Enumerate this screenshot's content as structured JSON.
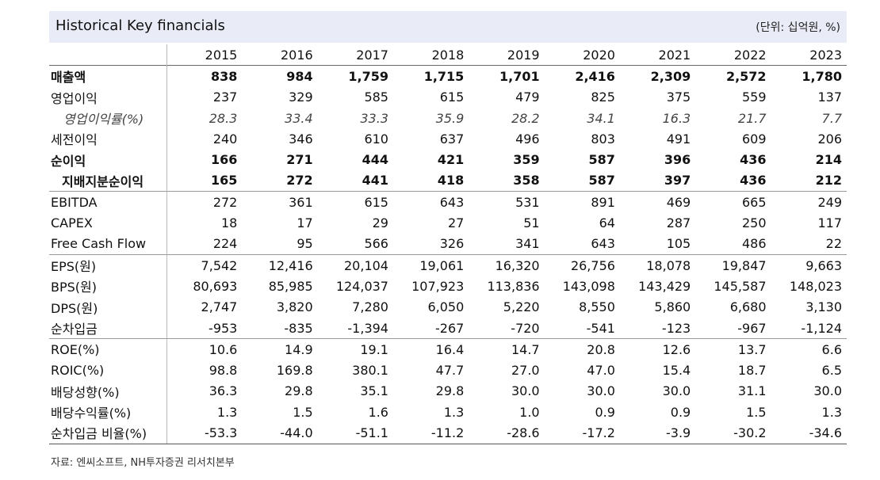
{
  "title": "Historical Key financials",
  "unit": "(단위: 십억원, %)",
  "years": [
    "2015",
    "2016",
    "2017",
    "2018",
    "2019",
    "2020",
    "2021",
    "2022",
    "2023"
  ],
  "rows": [
    {
      "label": "매출액",
      "style": "bold",
      "values": [
        "838",
        "984",
        "1,759",
        "1,715",
        "1,701",
        "2,416",
        "2,309",
        "2,572",
        "1,780"
      ]
    },
    {
      "label": "영업이익",
      "style": "",
      "values": [
        "237",
        "329",
        "585",
        "615",
        "479",
        "825",
        "375",
        "559",
        "137"
      ]
    },
    {
      "label": "영업이익률(%)",
      "style": "italic",
      "values": [
        "28.3",
        "33.4",
        "33.3",
        "35.9",
        "28.2",
        "34.1",
        "16.3",
        "21.7",
        "7.7"
      ]
    },
    {
      "label": "세전이익",
      "style": "",
      "values": [
        "240",
        "346",
        "610",
        "637",
        "496",
        "803",
        "491",
        "609",
        "206"
      ]
    },
    {
      "label": "순이익",
      "style": "bold",
      "values": [
        "166",
        "271",
        "444",
        "421",
        "359",
        "587",
        "396",
        "436",
        "214"
      ]
    },
    {
      "label": "지배지분순이익",
      "style": "bold indent sep",
      "values": [
        "165",
        "272",
        "441",
        "418",
        "358",
        "587",
        "397",
        "436",
        "212"
      ]
    },
    {
      "label": "EBITDA",
      "style": "",
      "values": [
        "272",
        "361",
        "615",
        "643",
        "531",
        "891",
        "469",
        "665",
        "249"
      ]
    },
    {
      "label": "CAPEX",
      "style": "",
      "values": [
        "18",
        "17",
        "29",
        "27",
        "51",
        "64",
        "287",
        "250",
        "117"
      ]
    },
    {
      "label": "Free Cash Flow",
      "style": "sep",
      "values": [
        "224",
        "95",
        "566",
        "326",
        "341",
        "643",
        "105",
        "486",
        "22"
      ]
    },
    {
      "label": "EPS(원)",
      "style": "",
      "values": [
        "7,542",
        "12,416",
        "20,104",
        "19,061",
        "16,320",
        "26,756",
        "18,078",
        "19,847",
        "9,663"
      ]
    },
    {
      "label": "BPS(원)",
      "style": "",
      "values": [
        "80,693",
        "85,985",
        "124,037",
        "107,923",
        "113,836",
        "143,098",
        "143,429",
        "145,587",
        "148,023"
      ]
    },
    {
      "label": "DPS(원)",
      "style": "",
      "values": [
        "2,747",
        "3,820",
        "7,280",
        "6,050",
        "5,220",
        "8,550",
        "5,860",
        "6,680",
        "3,130"
      ]
    },
    {
      "label": "순차입금",
      "style": "sep",
      "values": [
        "-953",
        "-835",
        "-1,394",
        "-267",
        "-720",
        "-541",
        "-123",
        "-967",
        "-1,124"
      ]
    },
    {
      "label": "ROE(%)",
      "style": "",
      "values": [
        "10.6",
        "14.9",
        "19.1",
        "16.4",
        "14.7",
        "20.8",
        "12.6",
        "13.7",
        "6.6"
      ]
    },
    {
      "label": "ROIC(%)",
      "style": "",
      "values": [
        "98.8",
        "169.8",
        "380.1",
        "47.7",
        "27.0",
        "47.0",
        "15.4",
        "18.7",
        "6.5"
      ]
    },
    {
      "label": "배당성향(%)",
      "style": "",
      "values": [
        "36.3",
        "29.8",
        "35.1",
        "29.8",
        "30.0",
        "30.0",
        "30.0",
        "31.1",
        "30.0"
      ]
    },
    {
      "label": "배당수익률(%)",
      "style": "",
      "values": [
        "1.3",
        "1.5",
        "1.6",
        "1.3",
        "1.0",
        "0.9",
        "0.9",
        "1.5",
        "1.3"
      ]
    },
    {
      "label": "순차입금 비율(%)",
      "style": "",
      "values": [
        "-53.3",
        "-44.0",
        "-51.1",
        "-11.2",
        "-28.6",
        "-17.2",
        "-3.9",
        "-30.2",
        "-34.6"
      ]
    }
  ],
  "source": "자료: 엔씨소프트, NH투자증권 리서치본부"
}
